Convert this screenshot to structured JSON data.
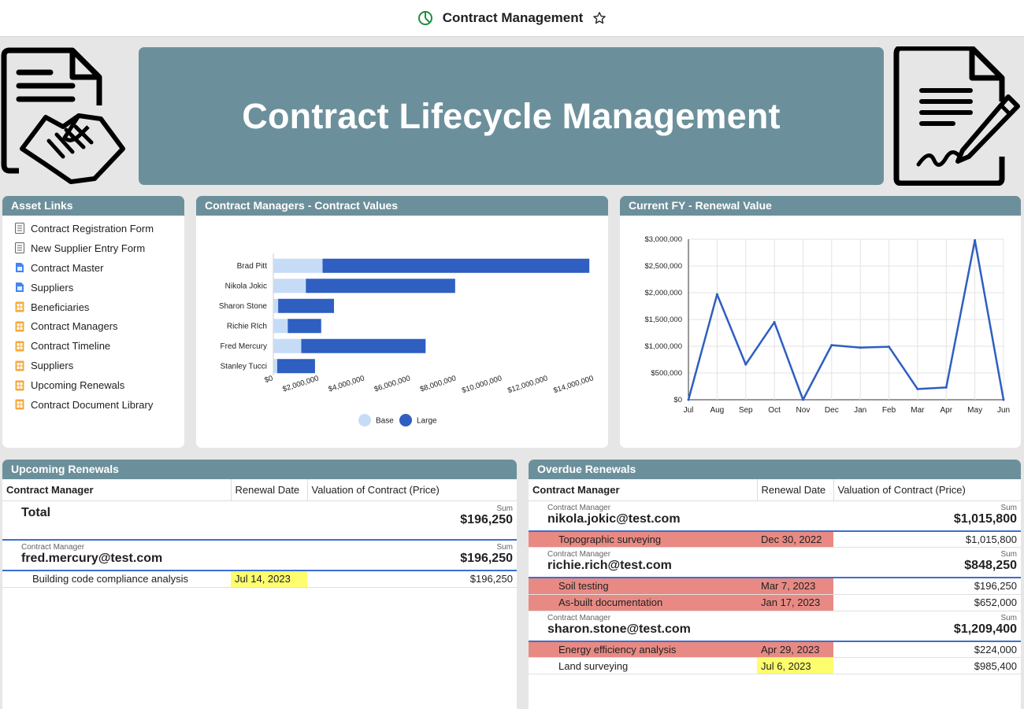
{
  "topbar": {
    "title": "Contract Management",
    "icon": "pie-chart-icon",
    "star_icon": "star-icon"
  },
  "banner": {
    "title": "Contract Lifecycle Management"
  },
  "asset_links": {
    "title": "Asset Links",
    "items": [
      {
        "label": "Contract Registration Form",
        "icon": "form-icon"
      },
      {
        "label": "New Supplier Entry Form",
        "icon": "form-icon"
      },
      {
        "label": "Contract Master",
        "icon": "doc-blue-icon"
      },
      {
        "label": "Suppliers",
        "icon": "doc-blue-icon"
      },
      {
        "label": "Beneficiaries",
        "icon": "table-orange-icon"
      },
      {
        "label": "Contract Managers",
        "icon": "table-orange-icon"
      },
      {
        "label": "Contract Timeline",
        "icon": "table-orange-icon"
      },
      {
        "label": "Suppliers",
        "icon": "table-orange-icon"
      },
      {
        "label": "Upcoming Renewals",
        "icon": "table-orange-icon"
      },
      {
        "label": "Contract Document Library",
        "icon": "table-orange-icon"
      }
    ]
  },
  "chart_data": [
    {
      "type": "bar",
      "orientation": "horizontal",
      "stacked": true,
      "title": "Contract Managers - Contract Values",
      "categories": [
        "Brad Pitt",
        "Nikola Jokic",
        "Sharon Stone",
        "Richie RIch",
        "Fred Mercury",
        "Stanley Tucci"
      ],
      "series": [
        {
          "name": "Base",
          "values": [
            2150000,
            1420000,
            210000,
            630000,
            1220000,
            170000
          ],
          "color": "#c6dcf6"
        },
        {
          "name": "Large",
          "values": [
            11650000,
            6520000,
            2440000,
            1460000,
            5430000,
            1650000
          ],
          "color": "#2e5fc1"
        }
      ],
      "xlim": [
        0,
        14000000
      ],
      "x_ticks": [
        "$0",
        "$2,000,000",
        "$4,000,000",
        "$6,000,000",
        "$8,000,000",
        "$10,000,000",
        "$12,000,000",
        "$14,000,000"
      ],
      "legend": "bottom"
    },
    {
      "type": "line",
      "title": "Current FY - Renewal Value",
      "x": [
        "Jul",
        "Aug",
        "Sep",
        "Oct",
        "Nov",
        "Dec",
        "Jan",
        "Feb",
        "Mar",
        "Apr",
        "May",
        "Jun"
      ],
      "values": [
        0,
        1970000,
        660000,
        1450000,
        0,
        1020000,
        975000,
        990000,
        200000,
        230000,
        2980000,
        0
      ],
      "ylim": [
        0,
        3000000
      ],
      "y_ticks": [
        "$0",
        "$500,000",
        "$1,000,000",
        "$1,500,000",
        "$2,000,000",
        "$2,500,000",
        "$3,000,000"
      ],
      "color": "#2e5fc1",
      "grid": true
    }
  ],
  "upcoming": {
    "title": "Upcoming Renewals",
    "columns": [
      "Contract Manager",
      "Renewal Date",
      "Valuation of Contract (Price)"
    ],
    "total_label": "Total",
    "sum_label": "Sum",
    "total_value": "$196,250",
    "group_label": "Contract Manager",
    "groups": [
      {
        "manager": "fred.mercury@test.com",
        "sum": "$196,250",
        "rows": [
          {
            "name": "Building code compliance analysis",
            "date": "Jul 14, 2023",
            "value": "$196,250",
            "date_color": "yellow",
            "name_color": ""
          }
        ]
      }
    ]
  },
  "overdue": {
    "title": "Overdue Renewals",
    "columns": [
      "Contract Manager",
      "Renewal Date",
      "Valuation of Contract (Price)"
    ],
    "sum_label": "Sum",
    "group_label": "Contract Manager",
    "groups": [
      {
        "manager": "nikola.jokic@test.com",
        "sum": "$1,015,800",
        "rows": [
          {
            "name": "Topographic surveying",
            "date": "Dec 30, 2022",
            "value": "$1,015,800",
            "date_color": "red",
            "name_color": "red"
          }
        ]
      },
      {
        "manager": "richie.rich@test.com",
        "sum": "$848,250",
        "rows": [
          {
            "name": "Soil testing",
            "date": "Mar 7, 2023",
            "value": "$196,250",
            "date_color": "red",
            "name_color": "red"
          },
          {
            "name": "As-built documentation",
            "date": "Jan 17, 2023",
            "value": "$652,000",
            "date_color": "red",
            "name_color": "red"
          }
        ]
      },
      {
        "manager": "sharon.stone@test.com",
        "sum": "$1,209,400",
        "rows": [
          {
            "name": "Energy efficiency analysis",
            "date": "Apr 29, 2023",
            "value": "$224,000",
            "date_color": "red",
            "name_color": "red"
          },
          {
            "name": "Land surveying",
            "date": "Jul 6, 2023",
            "value": "$985,400",
            "date_color": "yellow",
            "name_color": ""
          }
        ]
      }
    ]
  }
}
